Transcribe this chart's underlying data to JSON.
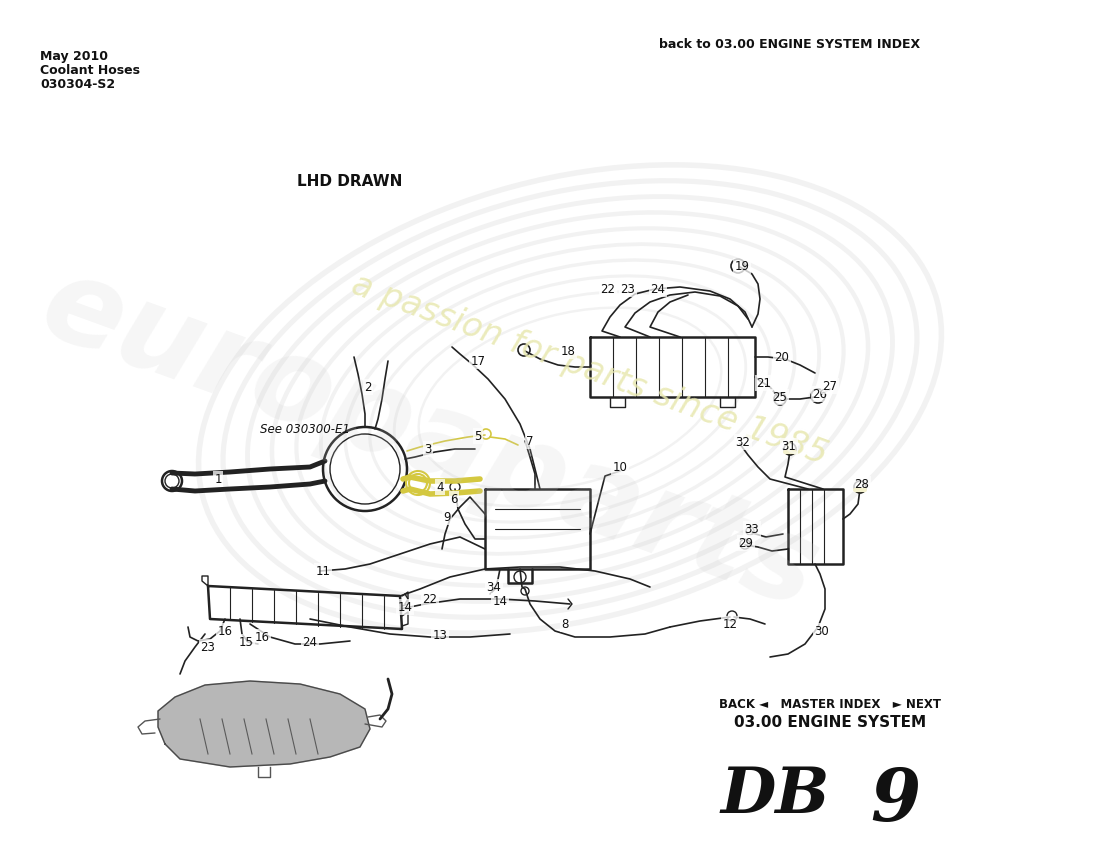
{
  "title": "DB 9",
  "subtitle": "03.00 ENGINE SYSTEM",
  "nav_text": "BACK ◄   MASTER INDEX   ► NEXT",
  "bottom_left_code": "030304-S2",
  "bottom_left_line2": "Coolant Hoses",
  "bottom_left_line3": "May 2010",
  "bottom_right_text": "back to 03.00 ENGINE SYSTEM INDEX",
  "lhd_text": "LHD DRAWN",
  "see_text": "See 030300-E1",
  "bg_color": "#ffffff",
  "line_color": "#222222",
  "yellow_color": "#d4c840",
  "wm_gray": "#cccccc",
  "wm_yellow": "#e8e8b0"
}
